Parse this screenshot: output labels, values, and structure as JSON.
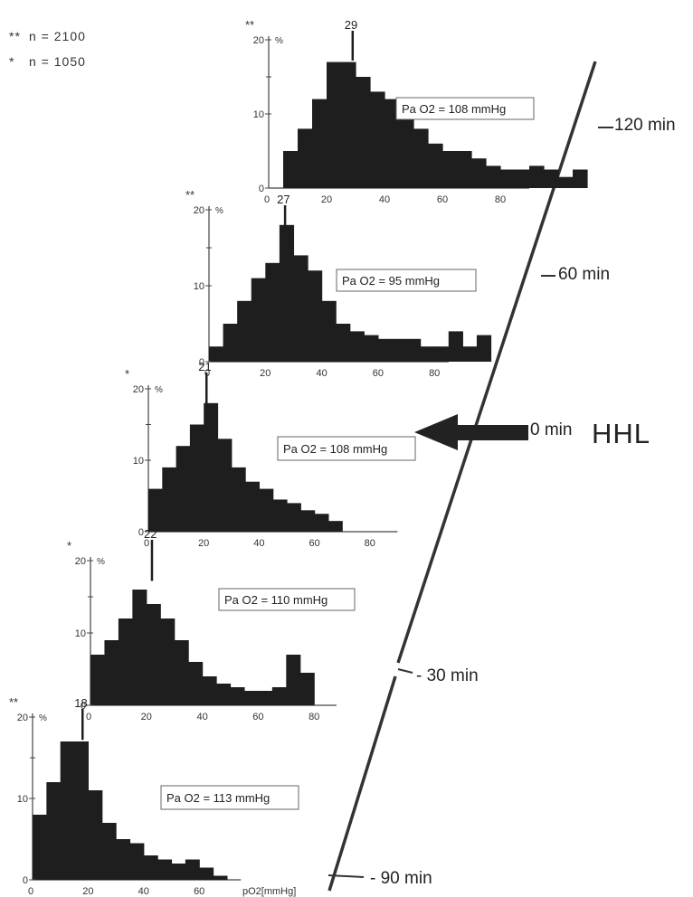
{
  "legend": [
    {
      "mark": "**",
      "text": "n = 2100"
    },
    {
      "mark": "*",
      "text": "n = 1050"
    }
  ],
  "timeline": {
    "labels": [
      "120 min",
      "60 min",
      "0 min",
      "- 30 min",
      "- 90 min"
    ],
    "event_label": "HHL"
  },
  "chart_data": [
    {
      "type": "bar",
      "marker": "**",
      "time": "120 min",
      "ytick_labels": [
        "20",
        "10",
        "0"
      ],
      "ytick_unit": "%",
      "xtick_labels": [
        "20",
        "40",
        "60",
        "80"
      ],
      "bin_width": 5,
      "x_start": 5,
      "values": [
        5,
        8,
        12,
        17,
        17,
        15,
        13,
        12,
        10,
        8,
        6,
        5,
        5,
        4,
        3,
        2.5,
        2.5,
        3,
        2.5,
        1.5,
        2.5
      ],
      "median": 29,
      "median_label": "29",
      "pao2_label": "Pa O2 = 108 mmHg"
    },
    {
      "type": "bar",
      "marker": "**",
      "time": "60 min",
      "ytick_labels": [
        "20",
        "10",
        "0"
      ],
      "ytick_unit": "%",
      "xtick_labels": [
        "20",
        "40",
        "60",
        "80"
      ],
      "bin_width": 5,
      "x_start": 0,
      "values": [
        2,
        5,
        8,
        11,
        13,
        18,
        14,
        12,
        8,
        5,
        4,
        3.5,
        3,
        3,
        3,
        2,
        2,
        4,
        2,
        3.5
      ],
      "median": 27,
      "median_label": "27",
      "pao2_label": "Pa O2 = 95 mmHg"
    },
    {
      "type": "bar",
      "marker": "*",
      "time": "0 min",
      "ytick_labels": [
        "20",
        "10",
        "0"
      ],
      "ytick_unit": "%",
      "xtick_labels": [
        "20",
        "40",
        "60",
        "80"
      ],
      "bin_width": 5,
      "x_start": 0,
      "values": [
        6,
        9,
        12,
        15,
        18,
        13,
        9,
        7,
        6,
        4.5,
        4,
        3,
        2.5,
        1.5
      ],
      "median": 21,
      "median_label": "21",
      "pao2_label": "Pa O2 = 108 mmHg"
    },
    {
      "type": "bar",
      "marker": "*",
      "time": "- 30 min",
      "ytick_labels": [
        "20",
        "10",
        "0"
      ],
      "ytick_unit": "%",
      "xtick_labels": [
        "20",
        "40",
        "60",
        "80"
      ],
      "bin_width": 5,
      "x_start": 0,
      "values": [
        7,
        9,
        12,
        16,
        14,
        12,
        9,
        6,
        4,
        3,
        2.5,
        2,
        2,
        2.5,
        7,
        4.5
      ],
      "median": 22,
      "median_label": "22",
      "pao2_label": "Pa O2 = 110 mmHg"
    },
    {
      "type": "bar",
      "marker": "**",
      "time": "- 90 min",
      "ytick_labels": [
        "20",
        "10",
        "0"
      ],
      "ytick_unit": "%",
      "xtick_labels": [
        "20",
        "40",
        "60"
      ],
      "xlabel": "pO2[mmHg]",
      "bin_width": 5,
      "x_start": 0,
      "values": [
        8,
        12,
        17,
        17,
        11,
        7,
        5,
        4.5,
        3,
        2.5,
        2,
        2.5,
        1.5,
        0.5
      ],
      "median": 18,
      "median_label": "18",
      "pao2_label": "Pa O2 = 113 mmHg"
    }
  ]
}
